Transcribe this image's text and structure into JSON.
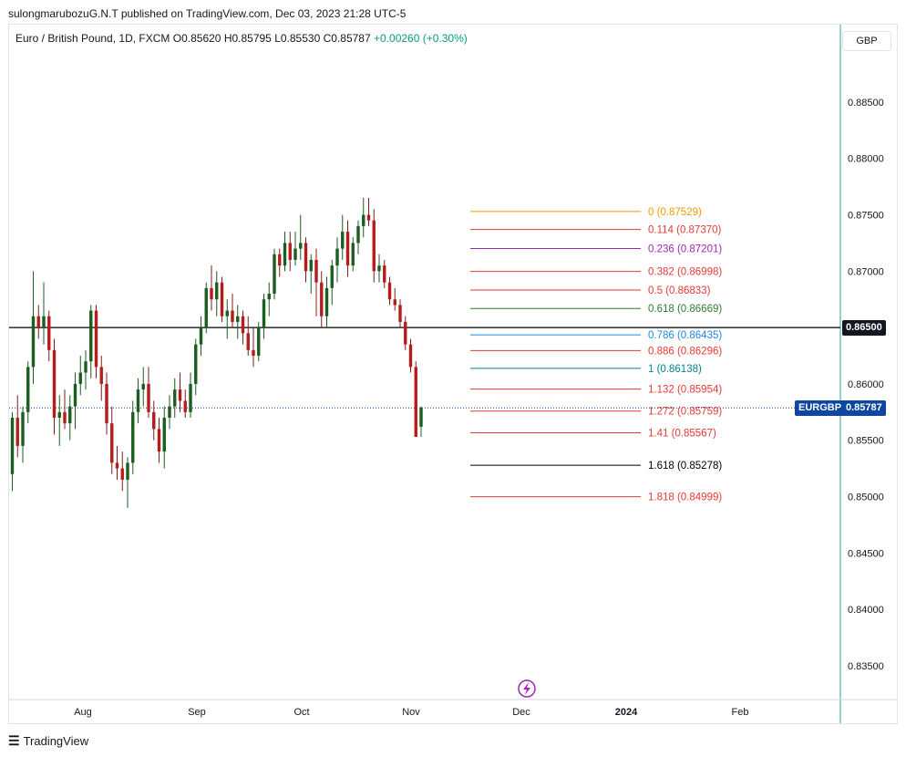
{
  "header": {
    "published_line": "sulongmarubozuG.N.T published on TradingView.com, Dec 03, 2023 21:28 UTC-5"
  },
  "legend": {
    "symbol": "Euro / British Pound, 1D, FXCM",
    "open": "O0.85620",
    "high": "H0.85795",
    "low": "L0.85530",
    "close": "C0.85787",
    "change": "+0.00260 (+0.30%)"
  },
  "currency_button": {
    "label": "GBP"
  },
  "footer": {
    "brand": "TradingView",
    "logo_icon": "tradingview-logo-icon"
  },
  "colors": {
    "up": "#26a69a",
    "down": "#ef5350",
    "candle_up_body": "#1b5e20",
    "candle_down_body": "#b71c1c",
    "horizontal_line": "#000000",
    "symbol_tag": "#0d47a1",
    "lightning_icon": "#9c27b0"
  },
  "chart_data": {
    "type": "candlestick",
    "symbol": "EURGBP",
    "timeframe": "1D",
    "ylim": [
      0.832,
      0.89
    ],
    "y_ticks": [
      "0.88500",
      "0.88000",
      "0.87500",
      "0.87000",
      "0.86500",
      "0.86000",
      "0.85500",
      "0.85000",
      "0.84500",
      "0.84000",
      "0.83500"
    ],
    "x_ticks": [
      "Aug",
      "Sep",
      "Oct",
      "Nov",
      "Dec",
      "2024",
      "Feb"
    ],
    "x_ticks_bold": [
      "2024"
    ],
    "horizontal_line": {
      "value": 0.865,
      "label": "0.86500"
    },
    "last_price": {
      "value": 0.85787,
      "label": "0.85787",
      "symbol_label": "EURGBP"
    },
    "fibonacci": [
      {
        "ratio": "0",
        "value": "0.87529",
        "color": "#f59b00"
      },
      {
        "ratio": "0.114",
        "value": "0.87370",
        "color": "#e53935"
      },
      {
        "ratio": "0.236",
        "value": "0.87201",
        "color": "#9c27b0"
      },
      {
        "ratio": "0.382",
        "value": "0.86998",
        "color": "#e53935"
      },
      {
        "ratio": "0.5",
        "value": "0.86833",
        "color": "#e53935"
      },
      {
        "ratio": "0.618",
        "value": "0.86669",
        "color": "#2e7d32"
      },
      {
        "ratio": "0.786",
        "value": "0.86435",
        "color": "#1e88e5"
      },
      {
        "ratio": "0.886",
        "value": "0.86296",
        "color": "#e53935"
      },
      {
        "ratio": "1",
        "value": "0.86138",
        "color": "#00838f"
      },
      {
        "ratio": "1.132",
        "value": "0.85954",
        "color": "#e53935"
      },
      {
        "ratio": "1.272",
        "value": "0.85759",
        "color": "#e53935"
      },
      {
        "ratio": "1.41",
        "value": "0.85567",
        "color": "#e53935"
      },
      {
        "ratio": "1.618",
        "value": "0.85278",
        "color": "#000000"
      },
      {
        "ratio": "1.818",
        "value": "0.84999",
        "color": "#e53935"
      }
    ],
    "candles": [
      {
        "o": 0.852,
        "h": 0.8575,
        "l": 0.8505,
        "c": 0.857
      },
      {
        "o": 0.857,
        "h": 0.859,
        "l": 0.8535,
        "c": 0.8545
      },
      {
        "o": 0.8545,
        "h": 0.858,
        "l": 0.853,
        "c": 0.8575
      },
      {
        "o": 0.8575,
        "h": 0.862,
        "l": 0.8565,
        "c": 0.8615
      },
      {
        "o": 0.8615,
        "h": 0.87,
        "l": 0.86,
        "c": 0.866
      },
      {
        "o": 0.866,
        "h": 0.867,
        "l": 0.864,
        "c": 0.865
      },
      {
        "o": 0.865,
        "h": 0.869,
        "l": 0.8635,
        "c": 0.866
      },
      {
        "o": 0.866,
        "h": 0.8665,
        "l": 0.862,
        "c": 0.863
      },
      {
        "o": 0.863,
        "h": 0.864,
        "l": 0.8555,
        "c": 0.857
      },
      {
        "o": 0.857,
        "h": 0.859,
        "l": 0.8545,
        "c": 0.8575
      },
      {
        "o": 0.8575,
        "h": 0.8595,
        "l": 0.856,
        "c": 0.8565
      },
      {
        "o": 0.8565,
        "h": 0.859,
        "l": 0.855,
        "c": 0.858
      },
      {
        "o": 0.858,
        "h": 0.861,
        "l": 0.856,
        "c": 0.86
      },
      {
        "o": 0.86,
        "h": 0.8625,
        "l": 0.859,
        "c": 0.861
      },
      {
        "o": 0.861,
        "h": 0.863,
        "l": 0.8595,
        "c": 0.862
      },
      {
        "o": 0.862,
        "h": 0.867,
        "l": 0.8605,
        "c": 0.8665
      },
      {
        "o": 0.8665,
        "h": 0.867,
        "l": 0.8605,
        "c": 0.8615
      },
      {
        "o": 0.8615,
        "h": 0.8625,
        "l": 0.8585,
        "c": 0.86
      },
      {
        "o": 0.86,
        "h": 0.861,
        "l": 0.8555,
        "c": 0.8565
      },
      {
        "o": 0.8565,
        "h": 0.858,
        "l": 0.852,
        "c": 0.853
      },
      {
        "o": 0.853,
        "h": 0.8545,
        "l": 0.8515,
        "c": 0.8525
      },
      {
        "o": 0.8525,
        "h": 0.854,
        "l": 0.8505,
        "c": 0.8515
      },
      {
        "o": 0.8515,
        "h": 0.8535,
        "l": 0.849,
        "c": 0.853
      },
      {
        "o": 0.853,
        "h": 0.8585,
        "l": 0.852,
        "c": 0.8575
      },
      {
        "o": 0.8575,
        "h": 0.8605,
        "l": 0.8565,
        "c": 0.8595
      },
      {
        "o": 0.8595,
        "h": 0.8615,
        "l": 0.858,
        "c": 0.86
      },
      {
        "o": 0.86,
        "h": 0.8615,
        "l": 0.857,
        "c": 0.8575
      },
      {
        "o": 0.8575,
        "h": 0.8585,
        "l": 0.855,
        "c": 0.856
      },
      {
        "o": 0.856,
        "h": 0.857,
        "l": 0.853,
        "c": 0.854
      },
      {
        "o": 0.854,
        "h": 0.858,
        "l": 0.8525,
        "c": 0.857
      },
      {
        "o": 0.857,
        "h": 0.859,
        "l": 0.856,
        "c": 0.858
      },
      {
        "o": 0.858,
        "h": 0.8605,
        "l": 0.857,
        "c": 0.8595
      },
      {
        "o": 0.8595,
        "h": 0.861,
        "l": 0.8575,
        "c": 0.8585
      },
      {
        "o": 0.8585,
        "h": 0.8595,
        "l": 0.857,
        "c": 0.8575
      },
      {
        "o": 0.8575,
        "h": 0.861,
        "l": 0.857,
        "c": 0.86
      },
      {
        "o": 0.86,
        "h": 0.864,
        "l": 0.859,
        "c": 0.8635
      },
      {
        "o": 0.8635,
        "h": 0.866,
        "l": 0.8625,
        "c": 0.865
      },
      {
        "o": 0.865,
        "h": 0.869,
        "l": 0.8645,
        "c": 0.8685
      },
      {
        "o": 0.8685,
        "h": 0.8705,
        "l": 0.8665,
        "c": 0.8675
      },
      {
        "o": 0.8675,
        "h": 0.87,
        "l": 0.866,
        "c": 0.869
      },
      {
        "o": 0.869,
        "h": 0.8695,
        "l": 0.8655,
        "c": 0.866
      },
      {
        "o": 0.866,
        "h": 0.8675,
        "l": 0.864,
        "c": 0.8665
      },
      {
        "o": 0.8665,
        "h": 0.868,
        "l": 0.865,
        "c": 0.8655
      },
      {
        "o": 0.8655,
        "h": 0.867,
        "l": 0.864,
        "c": 0.866
      },
      {
        "o": 0.866,
        "h": 0.8665,
        "l": 0.8635,
        "c": 0.8645
      },
      {
        "o": 0.8645,
        "h": 0.866,
        "l": 0.8625,
        "c": 0.863
      },
      {
        "o": 0.863,
        "h": 0.865,
        "l": 0.8615,
        "c": 0.8625
      },
      {
        "o": 0.8625,
        "h": 0.8655,
        "l": 0.862,
        "c": 0.865
      },
      {
        "o": 0.865,
        "h": 0.868,
        "l": 0.864,
        "c": 0.8675
      },
      {
        "o": 0.8675,
        "h": 0.869,
        "l": 0.866,
        "c": 0.868
      },
      {
        "o": 0.868,
        "h": 0.872,
        "l": 0.8675,
        "c": 0.8715
      },
      {
        "o": 0.8715,
        "h": 0.872,
        "l": 0.8695,
        "c": 0.8705
      },
      {
        "o": 0.8705,
        "h": 0.8735,
        "l": 0.87,
        "c": 0.8725
      },
      {
        "o": 0.8725,
        "h": 0.8735,
        "l": 0.87,
        "c": 0.871
      },
      {
        "o": 0.871,
        "h": 0.8735,
        "l": 0.8705,
        "c": 0.872
      },
      {
        "o": 0.872,
        "h": 0.875,
        "l": 0.871,
        "c": 0.8725
      },
      {
        "o": 0.8725,
        "h": 0.873,
        "l": 0.869,
        "c": 0.87
      },
      {
        "o": 0.87,
        "h": 0.8715,
        "l": 0.868,
        "c": 0.871
      },
      {
        "o": 0.871,
        "h": 0.872,
        "l": 0.866,
        "c": 0.869
      },
      {
        "o": 0.869,
        "h": 0.87,
        "l": 0.865,
        "c": 0.866
      },
      {
        "o": 0.866,
        "h": 0.8695,
        "l": 0.865,
        "c": 0.8685
      },
      {
        "o": 0.8685,
        "h": 0.871,
        "l": 0.867,
        "c": 0.8705
      },
      {
        "o": 0.8705,
        "h": 0.873,
        "l": 0.869,
        "c": 0.872
      },
      {
        "o": 0.872,
        "h": 0.875,
        "l": 0.871,
        "c": 0.8735
      },
      {
        "o": 0.8735,
        "h": 0.8745,
        "l": 0.8695,
        "c": 0.8705
      },
      {
        "o": 0.8705,
        "h": 0.873,
        "l": 0.87,
        "c": 0.8725
      },
      {
        "o": 0.8725,
        "h": 0.8745,
        "l": 0.8715,
        "c": 0.874
      },
      {
        "o": 0.874,
        "h": 0.8765,
        "l": 0.873,
        "c": 0.875
      },
      {
        "o": 0.875,
        "h": 0.8765,
        "l": 0.874,
        "c": 0.8745
      },
      {
        "o": 0.8745,
        "h": 0.8755,
        "l": 0.869,
        "c": 0.87
      },
      {
        "o": 0.87,
        "h": 0.8715,
        "l": 0.869,
        "c": 0.8705
      },
      {
        "o": 0.8705,
        "h": 0.871,
        "l": 0.8685,
        "c": 0.869
      },
      {
        "o": 0.869,
        "h": 0.8695,
        "l": 0.867,
        "c": 0.8675
      },
      {
        "o": 0.8675,
        "h": 0.8685,
        "l": 0.8665,
        "c": 0.867
      },
      {
        "o": 0.867,
        "h": 0.8675,
        "l": 0.865,
        "c": 0.8655
      },
      {
        "o": 0.8655,
        "h": 0.866,
        "l": 0.863,
        "c": 0.8635
      },
      {
        "o": 0.8635,
        "h": 0.864,
        "l": 0.861,
        "c": 0.8615
      },
      {
        "o": 0.8615,
        "h": 0.862,
        "l": 0.8553,
        "c": 0.8553
      },
      {
        "o": 0.8562,
        "h": 0.858,
        "l": 0.8553,
        "c": 0.8579
      }
    ],
    "last_candle_x_index": 79
  }
}
